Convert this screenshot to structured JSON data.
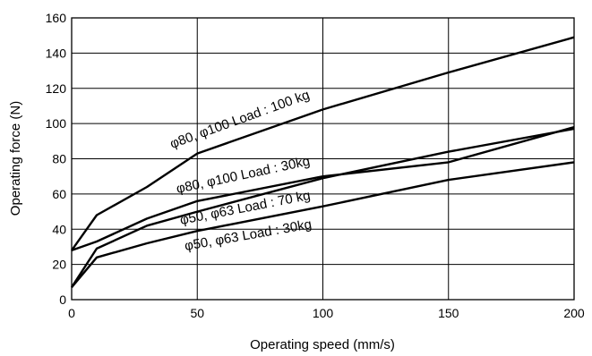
{
  "chart_data": {
    "type": "line",
    "xlabel": "Operating speed (mm/s)",
    "ylabel": "Operating force (N)",
    "xlim": [
      0,
      200
    ],
    "ylim": [
      0,
      160
    ],
    "xticks": [
      0,
      50,
      100,
      150,
      200
    ],
    "yticks": [
      0,
      20,
      40,
      60,
      80,
      100,
      120,
      140,
      160
    ],
    "grid": true,
    "series": [
      {
        "name": "φ80, φ100 Load : 100 kg",
        "x": [
          0,
          10,
          30,
          50,
          100,
          150,
          200
        ],
        "y": [
          28,
          48,
          64,
          83,
          108,
          129,
          149
        ]
      },
      {
        "name": "φ80, φ100 Load : 30kg",
        "x": [
          0,
          10,
          30,
          50,
          100,
          150,
          200
        ],
        "y": [
          28,
          33,
          46,
          56,
          70,
          78,
          98
        ]
      },
      {
        "name": "φ50, φ63 Load : 70 kg",
        "x": [
          0,
          10,
          30,
          50,
          100,
          150,
          200
        ],
        "y": [
          7,
          29,
          42,
          50,
          69,
          84,
          97
        ]
      },
      {
        "name": "φ50, φ63 Load : 30kg",
        "x": [
          0,
          10,
          30,
          50,
          100,
          150,
          200
        ],
        "y": [
          7,
          24,
          32,
          39,
          53,
          68,
          78
        ]
      }
    ]
  }
}
